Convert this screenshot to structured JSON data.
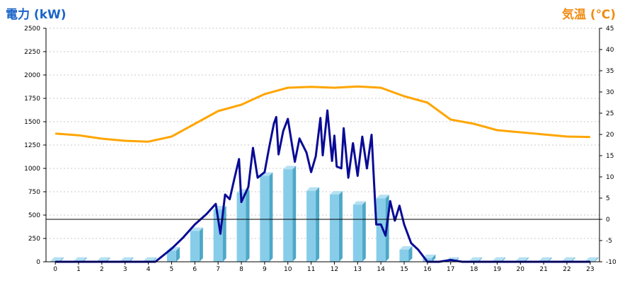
{
  "chart_data": {
    "type": "bar+line",
    "title_left": "電力 (kW)",
    "title_right": "気温 (℃)",
    "x_ticks": [
      "0",
      "1",
      "2",
      "3",
      "4",
      "5",
      "6",
      "7",
      "8",
      "9",
      "10",
      "11",
      "12",
      "13",
      "14",
      "15",
      "16",
      "17",
      "18",
      "19",
      "20",
      "21",
      "22",
      "23"
    ],
    "y_left": {
      "min": 0,
      "max": 2500,
      "ticks": [
        0,
        250,
        500,
        750,
        1000,
        1250,
        1500,
        1750,
        2000,
        2250,
        2500
      ]
    },
    "y_right": {
      "min": -10,
      "max": 45,
      "ticks": [
        -10,
        -5,
        0,
        5,
        10,
        15,
        20,
        25,
        30,
        35,
        40,
        45
      ]
    },
    "grid": true,
    "reference_line_right": 0,
    "colors": {
      "bars": "#87cde9",
      "bars_side": "#4ea8c8",
      "power_line": "#0a0a96",
      "temperature_line": "#ffa500",
      "axis": "#000000",
      "grid": "#c8c8c8",
      "tick_text": "#000000"
    },
    "bars": {
      "x": [
        0,
        1,
        2,
        3,
        4,
        5,
        6,
        7,
        8,
        9,
        10,
        11,
        12,
        13,
        14,
        15,
        16,
        17,
        18,
        19,
        20,
        21,
        22,
        23
      ],
      "values": [
        10,
        10,
        10,
        10,
        10,
        120,
        330,
        560,
        740,
        920,
        990,
        760,
        720,
        610,
        680,
        130,
        40,
        10,
        10,
        10,
        10,
        10,
        10,
        10
      ]
    },
    "power_line": {
      "x": [
        0,
        1,
        2,
        3,
        4,
        4.3,
        5,
        5.5,
        6,
        6.5,
        6.9,
        7.1,
        7.3,
        7.5,
        7.7,
        7.9,
        8.0,
        8.3,
        8.5,
        8.7,
        9.0,
        9.2,
        9.4,
        9.5,
        9.6,
        9.8,
        10.0,
        10.2,
        10.3,
        10.5,
        10.8,
        11.0,
        11.2,
        11.4,
        11.5,
        11.7,
        11.9,
        12.0,
        12.1,
        12.3,
        12.4,
        12.6,
        12.8,
        13.0,
        13.2,
        13.4,
        13.6,
        13.8,
        14.0,
        14.2,
        14.4,
        14.6,
        14.8,
        15.0,
        15.3,
        15.6,
        16.0,
        16.5,
        17.0,
        17.5,
        18,
        19,
        20,
        21,
        22,
        23
      ],
      "values": [
        0,
        0,
        0,
        0,
        0,
        0,
        140,
        260,
        400,
        510,
        620,
        300,
        720,
        670,
        890,
        1100,
        640,
        800,
        1220,
        900,
        960,
        1230,
        1480,
        1550,
        1150,
        1400,
        1530,
        1220,
        1070,
        1320,
        1170,
        960,
        1130,
        1540,
        1140,
        1620,
        1080,
        1350,
        1020,
        1000,
        1430,
        900,
        1270,
        920,
        1340,
        1000,
        1360,
        400,
        400,
        280,
        650,
        440,
        600,
        400,
        200,
        130,
        0,
        0,
        20,
        0,
        0,
        0,
        0,
        0,
        0,
        0
      ]
    },
    "temperature_line": {
      "x": [
        0,
        1,
        2,
        3,
        4,
        5,
        6,
        7,
        8,
        9,
        10,
        11,
        12,
        13,
        14,
        15,
        16,
        17,
        18,
        19,
        20,
        21,
        22,
        23
      ],
      "values": [
        20.2,
        19.8,
        19,
        18.5,
        18.3,
        19.5,
        22.5,
        25.5,
        27,
        29.5,
        31,
        31.2,
        31,
        31.3,
        31,
        29,
        27.5,
        23.5,
        22.5,
        21,
        20.5,
        20,
        19.5,
        19.4
      ]
    }
  }
}
